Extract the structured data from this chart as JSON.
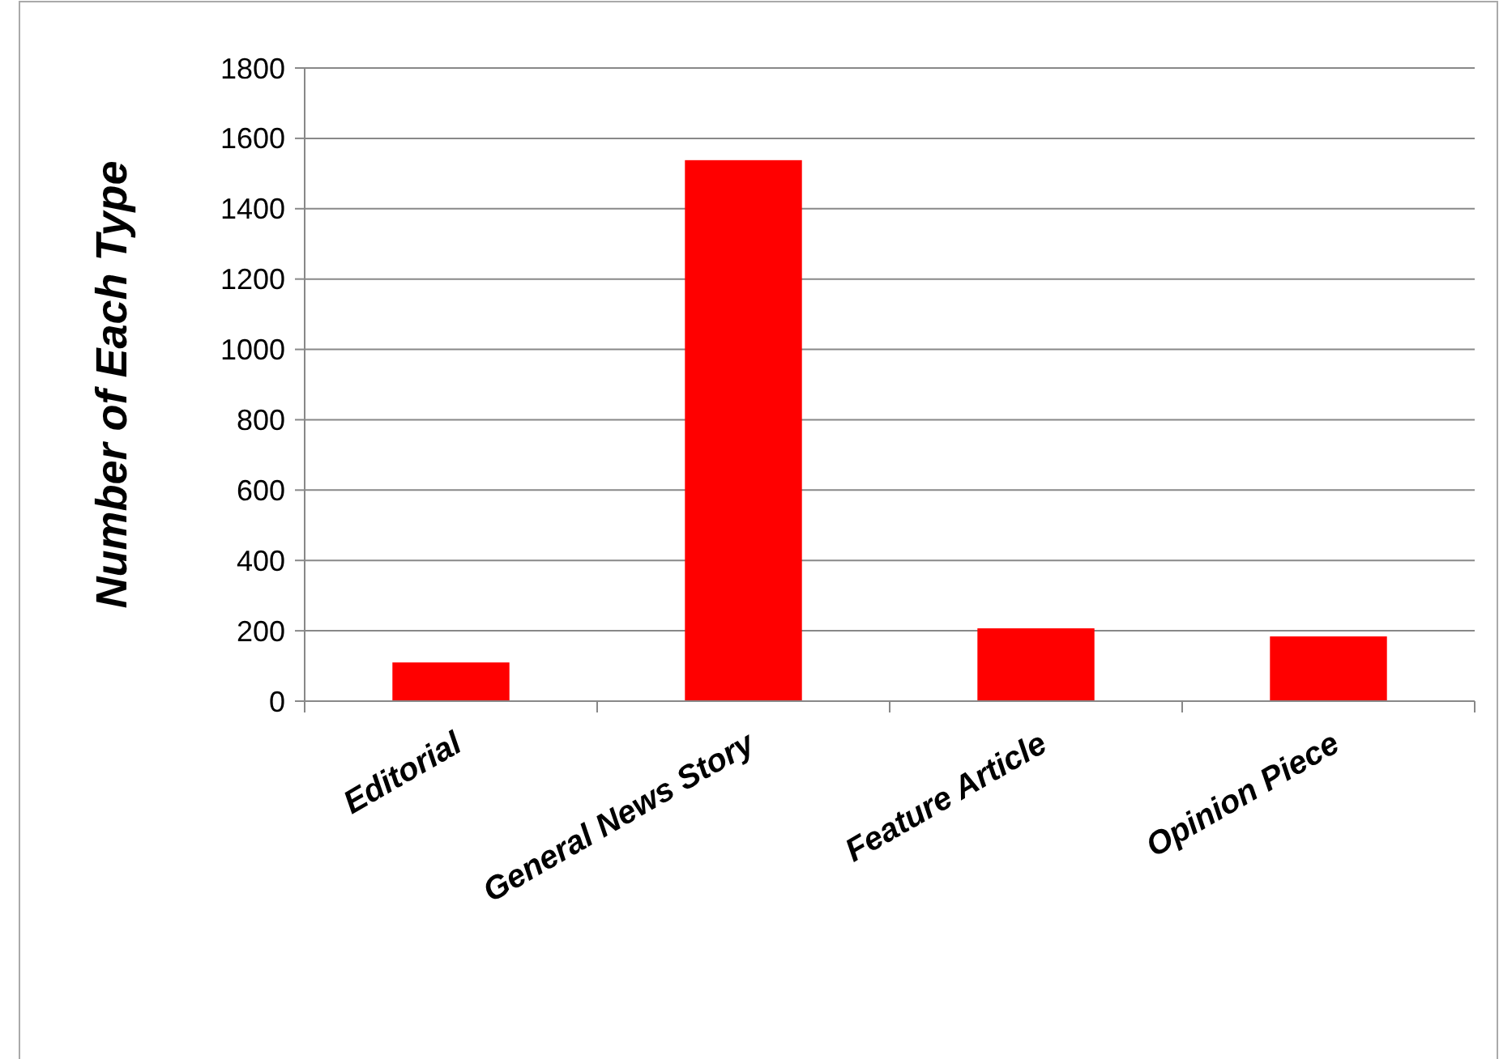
{
  "chart_data": {
    "type": "bar",
    "ylabel": "Number of Each Type",
    "categories": [
      "Editorial",
      "General News Story",
      "Feature Article",
      "Opinion Piece"
    ],
    "values": [
      110,
      1538,
      207,
      184
    ],
    "color": "#ff0000",
    "ylim": [
      0,
      1800
    ],
    "yticks": [
      0,
      200,
      400,
      600,
      800,
      1000,
      1200,
      1400,
      1600,
      1800
    ],
    "grid": "y"
  }
}
